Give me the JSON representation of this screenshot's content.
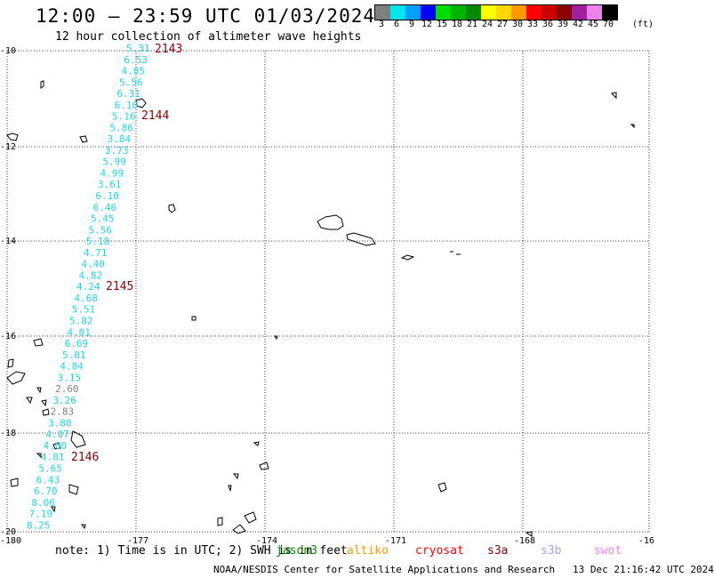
{
  "header": {
    "title": "12:00 — 23:59 UTC 01/03/2024",
    "subtitle": "12 hour collection of altimeter wave heights"
  },
  "legend": {
    "units": "(ft)",
    "items": [
      {
        "label": "3",
        "color": "#7f7f7f"
      },
      {
        "label": "6",
        "color": "#00e5ee"
      },
      {
        "label": "9",
        "color": "#00a0ff"
      },
      {
        "label": "12",
        "color": "#0000ff"
      },
      {
        "label": "15",
        "color": "#00dd00"
      },
      {
        "label": "18",
        "color": "#00b400"
      },
      {
        "label": "21",
        "color": "#008b00"
      },
      {
        "label": "24",
        "color": "#ffff00"
      },
      {
        "label": "27",
        "color": "#ffd700"
      },
      {
        "label": "30",
        "color": "#ff9900"
      },
      {
        "label": "33",
        "color": "#ff0000"
      },
      {
        "label": "36",
        "color": "#cc0000"
      },
      {
        "label": "39",
        "color": "#8b0000"
      },
      {
        "label": "42",
        "color": "#a020a0"
      },
      {
        "label": "45",
        "color": "#ee82ee"
      },
      {
        "label": "70",
        "color": "#000000"
      }
    ]
  },
  "axes": {
    "lon_labels": [
      "-180",
      "-177",
      "-174",
      "-171",
      "-168",
      "-16"
    ],
    "lat_labels": [
      "-10",
      "-12",
      "-14",
      "-16",
      "-18",
      "-20"
    ]
  },
  "passes": [
    "2143",
    "2144",
    "2145",
    "2146"
  ],
  "wave_heights": [
    "5.31",
    "6.53",
    "4.85",
    "5.56",
    "6.31",
    "6.10",
    "5.16",
    "5.86",
    "3.84",
    "3.73",
    "5.99",
    "4.99",
    "3.61",
    "6.10",
    "6.46",
    "5.45",
    "5.56",
    "5.18",
    "4.71",
    "4.40",
    "4.82",
    "4.24",
    "4.68",
    "5.51",
    "5.82",
    "4.01",
    "6.69",
    "5.01",
    "4.84",
    "3.15",
    "2.60",
    "3.26",
    "2.83",
    "3.80",
    "4.07",
    "4.00",
    "4.81",
    "5.65",
    "6.43",
    "6.70",
    "8.06",
    "7.19",
    "8.25"
  ],
  "note": "note: 1) Time is in UTC; 2) SWH is in feet",
  "satellites": [
    {
      "name": "jason3",
      "color": "#008b00"
    },
    {
      "name": "altiko",
      "color": "#ff9900"
    },
    {
      "name": "cryosat",
      "color": "#ff0000"
    },
    {
      "name": "s3a",
      "color": "#8b0000"
    },
    {
      "name": "s3b",
      "color": "#b0a0e8"
    },
    {
      "name": "swot",
      "color": "#ee82ee"
    }
  ],
  "footer": {
    "credit": "NOAA/NESDIS Center for Satellite Applications and Research",
    "timestamp": "13 Dec 21:16:42 UTC 2024"
  }
}
